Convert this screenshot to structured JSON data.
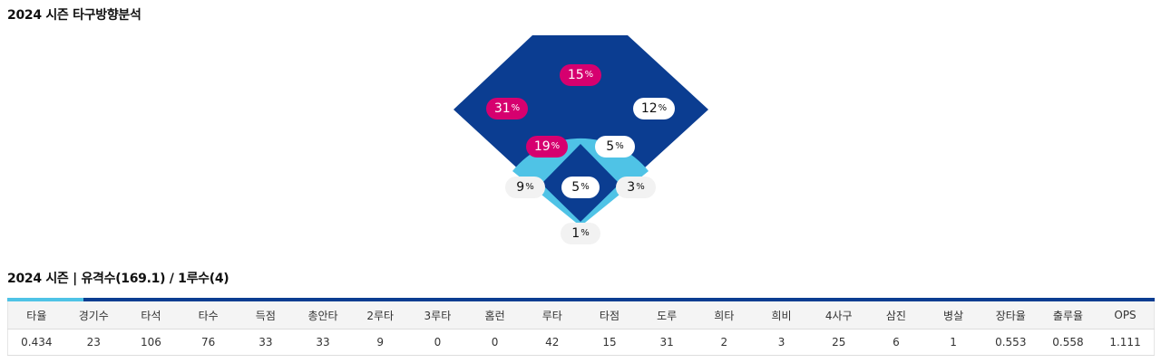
{
  "section1": {
    "title": "2024 시즌 타구방향분석"
  },
  "spray": {
    "unit": "%",
    "center_field": "15",
    "left_center": "31",
    "right_center": "12",
    "short_left": "19",
    "short_right": "5",
    "left_line": "9",
    "mound": "5",
    "right_line": "3",
    "home": "1"
  },
  "section2": {
    "title": "2024 시즌 | 유격수(169.1) / 1루수(4)"
  },
  "stats": {
    "headers": [
      "타율",
      "경기수",
      "타석",
      "타수",
      "득점",
      "총안타",
      "2루타",
      "3루타",
      "홈런",
      "루타",
      "타점",
      "도루",
      "희타",
      "희비",
      "4사구",
      "삼진",
      "병살",
      "장타율",
      "출루율",
      "OPS"
    ],
    "values": [
      "0.434",
      "23",
      "106",
      "76",
      "33",
      "33",
      "9",
      "0",
      "0",
      "42",
      "15",
      "31",
      "2",
      "3",
      "25",
      "6",
      "1",
      "0.553",
      "0.558",
      "1.111"
    ]
  },
  "colors": {
    "outfield": "#0b3d91",
    "infield_arc": "#4fc3e6",
    "hot": "#d6006f"
  }
}
